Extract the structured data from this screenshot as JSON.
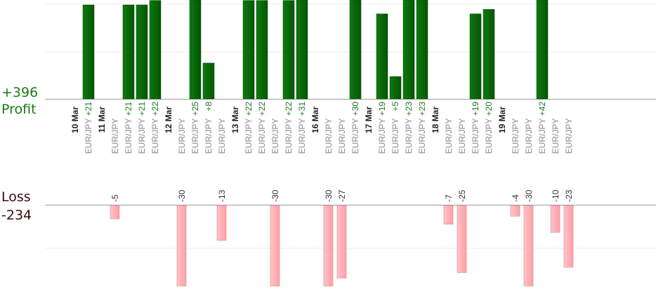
{
  "summary": {
    "profit_total": "+396",
    "profit_label": "Profit",
    "loss_label": "Loss",
    "loss_total": "-234"
  },
  "colors": {
    "profit_bar": "#0b6a0b",
    "profit_bar_edge": "#004d00",
    "profit_label": "#177a17",
    "loss_bar": "#ffb3b8",
    "loss_bar_edge": "#e08890",
    "loss_label": "#333333",
    "date_label": "#222222",
    "pair_label": "#8a8a8a",
    "axis": "#9a9a9a",
    "grid": "#ececec"
  },
  "chart_data": {
    "type": "bar",
    "title": "",
    "xlabel": "",
    "ylabel": "",
    "ylim_profit": [
      0,
      21
    ],
    "ylim_loss": [
      0,
      30
    ],
    "grid": true,
    "dates": [
      "10 Mar",
      "11 Mar",
      "12 Mar",
      "13 Mar",
      "16 Mar",
      "17 Mar",
      "18 Mar",
      "19 Mar"
    ],
    "trades": [
      {
        "date": "10 Mar",
        "pair": "EUR/JPY",
        "pnl": 21
      },
      {
        "date": "11 Mar",
        "pair": "EUR/JPY",
        "pnl": -5
      },
      {
        "date": "11 Mar",
        "pair": "EUR/JPY",
        "pnl": 21
      },
      {
        "date": "11 Mar",
        "pair": "EUR/JPY",
        "pnl": 21
      },
      {
        "date": "11 Mar",
        "pair": "EUR/JPY",
        "pnl": 22
      },
      {
        "date": "12 Mar",
        "pair": "EUR/JPY",
        "pnl": -30
      },
      {
        "date": "12 Mar",
        "pair": "EUR/JPY",
        "pnl": 25
      },
      {
        "date": "12 Mar",
        "pair": "EUR/JPY",
        "pnl": 8
      },
      {
        "date": "12 Mar",
        "pair": "EUR/JPY",
        "pnl": -13
      },
      {
        "date": "13 Mar",
        "pair": "EUR/JPY",
        "pnl": 22
      },
      {
        "date": "13 Mar",
        "pair": "EUR/JPY",
        "pnl": 22
      },
      {
        "date": "13 Mar",
        "pair": "EUR/JPY",
        "pnl": -30
      },
      {
        "date": "13 Mar",
        "pair": "EUR/JPY",
        "pnl": 22
      },
      {
        "date": "13 Mar",
        "pair": "EUR/JPY",
        "pnl": 31
      },
      {
        "date": "16 Mar",
        "pair": "EUR/JPY",
        "pnl": -30
      },
      {
        "date": "16 Mar",
        "pair": "EUR/JPY",
        "pnl": -27
      },
      {
        "date": "16 Mar",
        "pair": "EUR/JPY",
        "pnl": 30
      },
      {
        "date": "17 Mar",
        "pair": "EUR/JPY",
        "pnl": 19
      },
      {
        "date": "17 Mar",
        "pair": "EUR/JPY",
        "pnl": 5
      },
      {
        "date": "17 Mar",
        "pair": "EUR/JPY",
        "pnl": 23
      },
      {
        "date": "17 Mar",
        "pair": "EUR/JPY",
        "pnl": 23
      },
      {
        "date": "18 Mar",
        "pair": "EUR/JPY",
        "pnl": -7
      },
      {
        "date": "18 Mar",
        "pair": "EUR/JPY",
        "pnl": -25
      },
      {
        "date": "18 Mar",
        "pair": "EUR/JPY",
        "pnl": 19
      },
      {
        "date": "18 Mar",
        "pair": "EUR/JPY",
        "pnl": 20
      },
      {
        "date": "19 Mar",
        "pair": "EUR/JPY",
        "pnl": -4
      },
      {
        "date": "19 Mar",
        "pair": "EUR/JPY",
        "pnl": -30
      },
      {
        "date": "19 Mar",
        "pair": "EUR/JPY",
        "pnl": 42
      },
      {
        "date": "19 Mar",
        "pair": "EUR/JPY",
        "pnl": -10
      },
      {
        "date": "19 Mar",
        "pair": "EUR/JPY",
        "pnl": -23
      }
    ]
  }
}
